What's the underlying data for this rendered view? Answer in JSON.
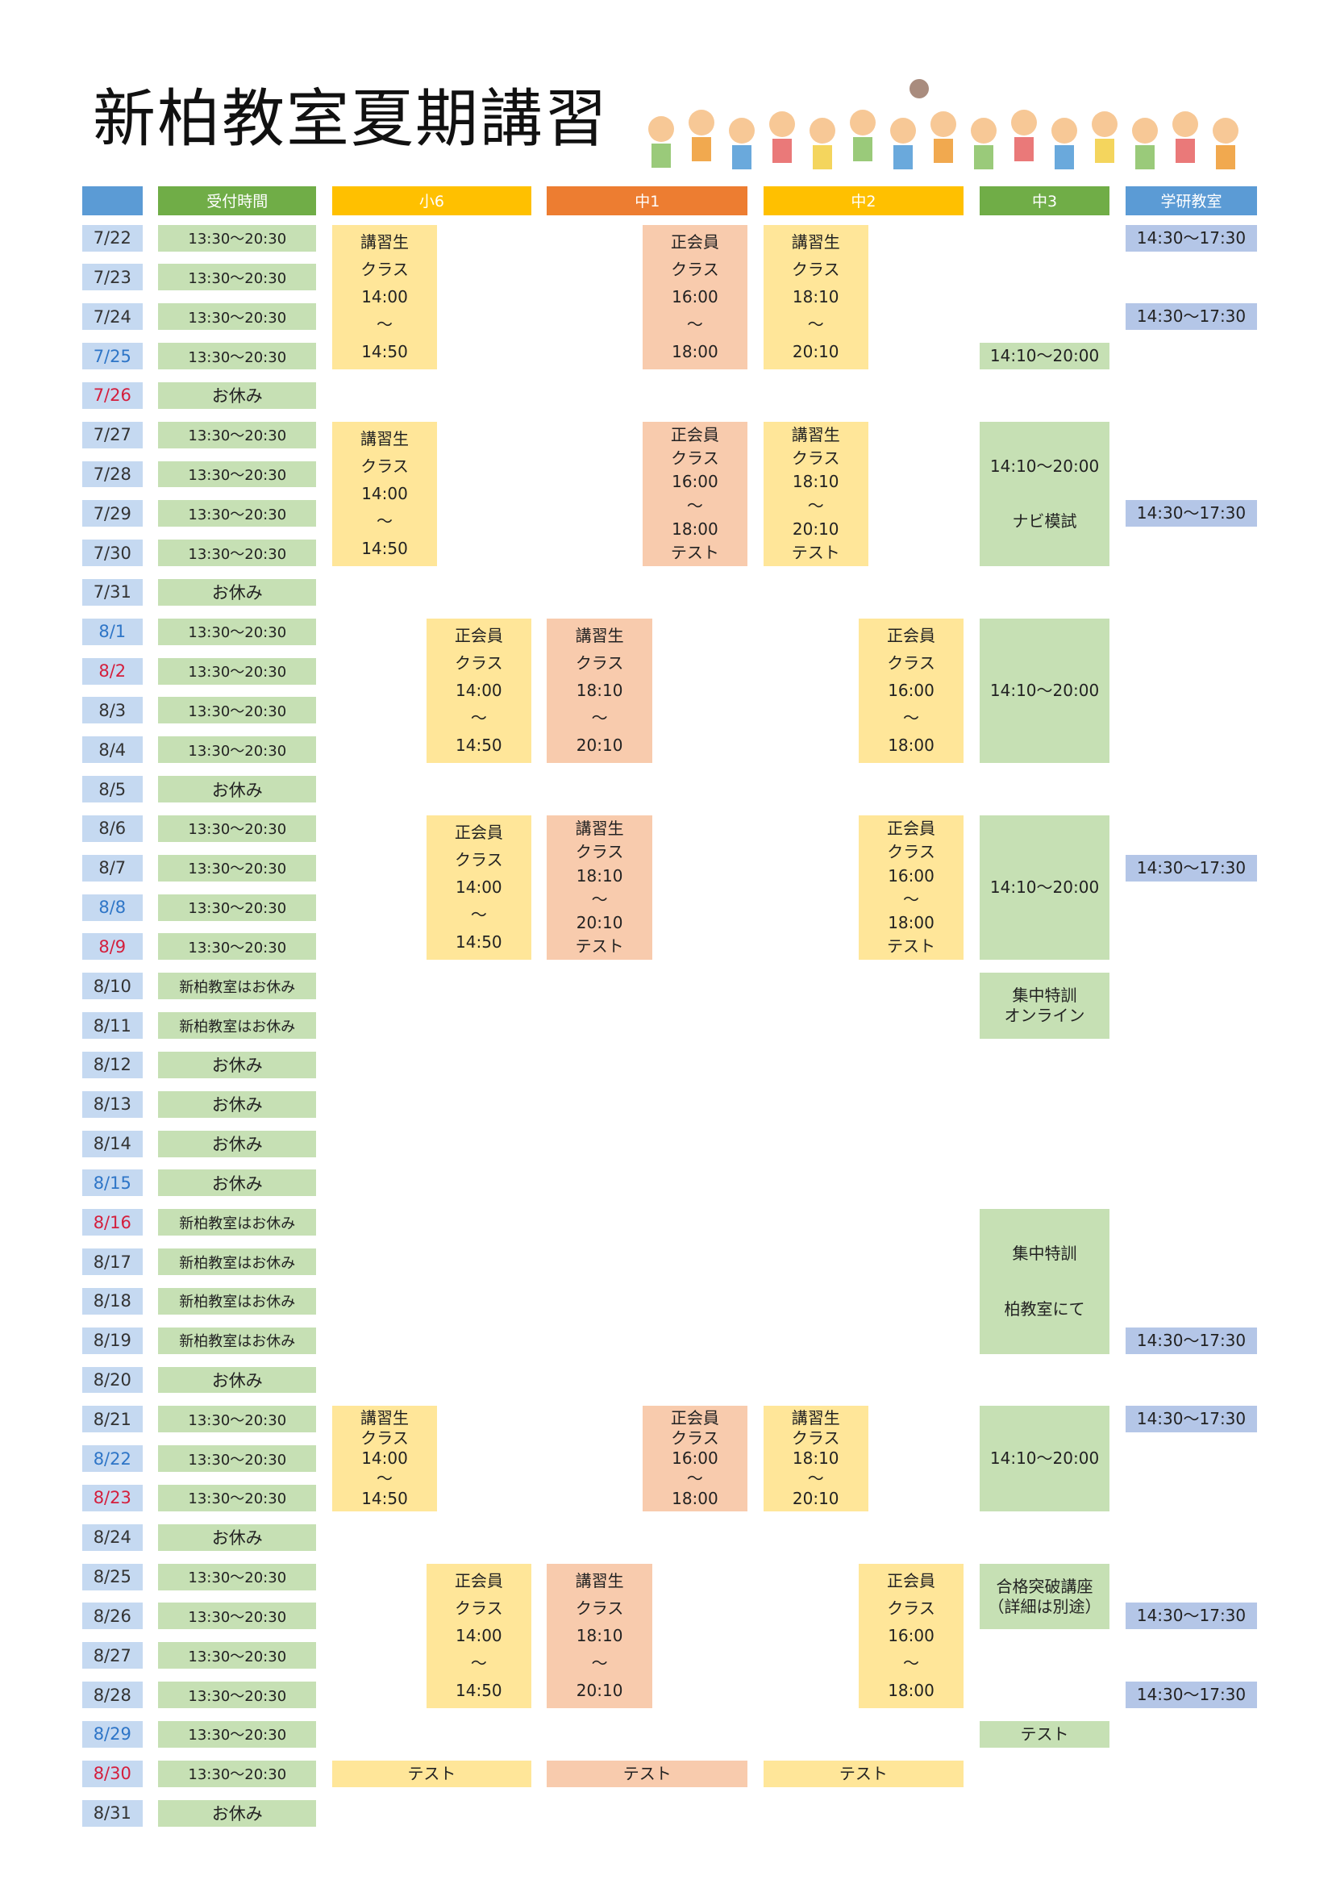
{
  "title": "新柏教室夏期講習",
  "headers": [
    "受付時間",
    "小6",
    "中1",
    "中2",
    "中3",
    "学研教室"
  ],
  "rows": [
    {
      "date": "7/22",
      "date_color": "#333333",
      "reception": "13:30～20:30"
    },
    {
      "date": "7/23",
      "date_color": "#333333",
      "reception": "13:30～20:30"
    },
    {
      "date": "7/24",
      "date_color": "#333333",
      "reception": "13:30～20:30"
    },
    {
      "date": "7/25",
      "date_color": "#2e75c7",
      "reception": "13:30～20:30"
    },
    {
      "date": "7/26",
      "date_color": "#d41e3c",
      "reception": "お休み"
    },
    {
      "date": "7/27",
      "date_color": "#333333",
      "reception": "13:30～20:30"
    },
    {
      "date": "7/28",
      "date_color": "#333333",
      "reception": "13:30～20:30"
    },
    {
      "date": "7/29",
      "date_color": "#333333",
      "reception": "13:30～20:30"
    },
    {
      "date": "7/30",
      "date_color": "#333333",
      "reception": "13:30～20:30"
    },
    {
      "date": "7/31",
      "date_color": "#333333",
      "reception": "お休み"
    },
    {
      "date": "8/1",
      "date_color": "#2e75c7",
      "reception": "13:30～20:30"
    },
    {
      "date": "8/2",
      "date_color": "#d41e3c",
      "reception": "13:30～20:30"
    },
    {
      "date": "8/3",
      "date_color": "#333333",
      "reception": "13:30～20:30"
    },
    {
      "date": "8/4",
      "date_color": "#333333",
      "reception": "13:30～20:30"
    },
    {
      "date": "8/5",
      "date_color": "#333333",
      "reception": "お休み"
    },
    {
      "date": "8/6",
      "date_color": "#333333",
      "reception": "13:30～20:30"
    },
    {
      "date": "8/7",
      "date_color": "#333333",
      "reception": "13:30～20:30"
    },
    {
      "date": "8/8",
      "date_color": "#2e75c7",
      "reception": "13:30～20:30"
    },
    {
      "date": "8/9",
      "date_color": "#d41e3c",
      "reception": "13:30～20:30"
    },
    {
      "date": "8/10",
      "date_color": "#333333",
      "reception": "新柏教室はお休み"
    },
    {
      "date": "8/11",
      "date_color": "#333333",
      "reception": "新柏教室はお休み"
    },
    {
      "date": "8/12",
      "date_color": "#333333",
      "reception": "お休み"
    },
    {
      "date": "8/13",
      "date_color": "#333333",
      "reception": "お休み"
    },
    {
      "date": "8/14",
      "date_color": "#333333",
      "reception": "お休み"
    },
    {
      "date": "8/15",
      "date_color": "#2e75c7",
      "reception": "お休み"
    },
    {
      "date": "8/16",
      "date_color": "#d41e3c",
      "reception": "新柏教室はお休み"
    },
    {
      "date": "8/17",
      "date_color": "#333333",
      "reception": "新柏教室はお休み"
    },
    {
      "date": "8/18",
      "date_color": "#333333",
      "reception": "新柏教室はお休み"
    },
    {
      "date": "8/19",
      "date_color": "#333333",
      "reception": "新柏教室はお休み"
    },
    {
      "date": "8/20",
      "date_color": "#333333",
      "reception": "お休み"
    },
    {
      "date": "8/21",
      "date_color": "#333333",
      "reception": "13:30～20:30"
    },
    {
      "date": "8/22",
      "date_color": "#2e75c7",
      "reception": "13:30～20:30"
    },
    {
      "date": "8/23",
      "date_color": "#d41e3c",
      "reception": "13:30～20:30"
    },
    {
      "date": "8/24",
      "date_color": "#333333",
      "reception": "お休み"
    },
    {
      "date": "8/25",
      "date_color": "#333333",
      "reception": "13:30～20:30"
    },
    {
      "date": "8/26",
      "date_color": "#333333",
      "reception": "13:30～20:30"
    },
    {
      "date": "8/27",
      "date_color": "#333333",
      "reception": "13:30～20:30"
    },
    {
      "date": "8/28",
      "date_color": "#333333",
      "reception": "13:30～20:30"
    },
    {
      "date": "8/29",
      "date_color": "#2e75c7",
      "reception": "13:30～20:30"
    },
    {
      "date": "8/30",
      "date_color": "#d41e3c",
      "reception": "13:30～20:30"
    },
    {
      "date": "8/31",
      "date_color": "#333333",
      "reception": "お休み"
    }
  ],
  "columns": [
    {
      "blocks": [
        {
          "lines": [
            "講習生",
            "クラス",
            "14:00",
            "～",
            "14:50"
          ]
        },
        {
          "lines": [
            "講習生",
            "クラス",
            "14:00",
            "～",
            "14:50"
          ]
        },
        {
          "lines": [
            "正会員",
            "クラス",
            "14:00",
            "～",
            "14:50"
          ]
        },
        {
          "lines": [
            "正会員",
            "クラス",
            "14:00",
            "～",
            "14:50"
          ]
        },
        {
          "lines": [
            "講習生",
            "クラス",
            "14:00",
            "～",
            "14:50"
          ]
        },
        {
          "lines": [
            "正会員",
            "クラス",
            "14:00",
            "～",
            "14:50"
          ]
        },
        {
          "lines": [
            "テスト"
          ]
        }
      ]
    },
    {
      "blocks": [
        {
          "lines": [
            "正会員",
            "クラス",
            "16:00",
            "～",
            "18:00"
          ]
        },
        {
          "lines": [
            "正会員",
            "クラス",
            "16:00",
            "～",
            "18:00",
            "テスト"
          ]
        },
        {
          "lines": [
            "講習生",
            "クラス",
            "18:10",
            "～",
            "20:10"
          ]
        },
        {
          "lines": [
            "講習生",
            "クラス",
            "18:10",
            "～",
            "20:10",
            "テスト"
          ]
        },
        {
          "lines": [
            "正会員",
            "クラス",
            "16:00",
            "～",
            "18:00"
          ]
        },
        {
          "lines": [
            "講習生",
            "クラス",
            "18:10",
            "～",
            "20:10"
          ]
        },
        {
          "lines": [
            "テスト"
          ]
        }
      ]
    },
    {
      "blocks": [
        {
          "lines": [
            "講習生",
            "クラス",
            "18:10",
            "～",
            "20:10"
          ]
        },
        {
          "lines": [
            "講習生",
            "クラス",
            "18:10",
            "～",
            "20:10",
            "テスト"
          ]
        },
        {
          "lines": [
            "正会員",
            "クラス",
            "16:00",
            "～",
            "18:00"
          ]
        },
        {
          "lines": [
            "正会員",
            "クラス",
            "16:00",
            "～",
            "18:00",
            "テスト"
          ]
        },
        {
          "lines": [
            "講習生",
            "クラス",
            "18:10",
            "～",
            "20:10"
          ]
        },
        {
          "lines": [
            "正会員",
            "クラス",
            "16:00",
            "～",
            "18:00"
          ]
        },
        {
          "lines": [
            "テスト"
          ]
        }
      ]
    },
    {
      "blocks": [
        {
          "lines": [
            "14:10～20:00"
          ]
        },
        {
          "lines": [
            "14:10～20:00",
            "ナビ模試"
          ]
        },
        {
          "lines": [
            "14:10～20:00"
          ]
        },
        {
          "lines": [
            "14:10～20:00"
          ]
        },
        {
          "lines": [
            "集中特訓",
            "オンライン"
          ]
        },
        {
          "lines": [
            "集中特訓",
            "柏教室にて"
          ]
        },
        {
          "lines": [
            "14:10～20:00"
          ]
        },
        {
          "lines": [
            "合格突破講座",
            "（詳細は別途）"
          ]
        },
        {
          "lines": [
            "テスト"
          ]
        }
      ]
    },
    {
      "blocks": [
        {
          "lines": [
            "14:30～17:30"
          ]
        },
        {
          "lines": [
            "14:30～17:30"
          ]
        },
        {
          "lines": [
            "14:30～17:30"
          ]
        },
        {
          "lines": [
            "14:30～17:30"
          ]
        },
        {
          "lines": [
            "14:30～17:30"
          ]
        },
        {
          "lines": [
            "14:30～17:30"
          ]
        },
        {
          "lines": [
            "14:30～17:30"
          ]
        },
        {
          "lines": [
            "14:30～17:30"
          ]
        }
      ]
    }
  ]
}
